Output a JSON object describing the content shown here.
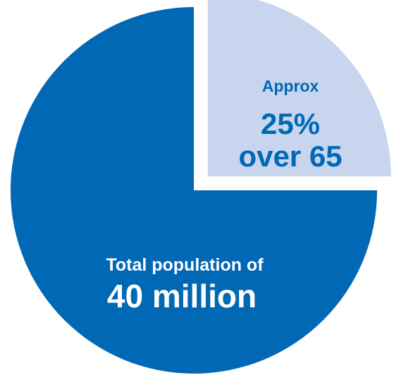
{
  "chart_data": {
    "type": "pie",
    "slices": [
      {
        "label_small": "Total population of",
        "label_large": "40 million",
        "value": 75,
        "color": "#0068b4",
        "text_color": "#ffffff",
        "exploded": false
      },
      {
        "label_small": "Approx",
        "label_large": "25%",
        "label_large_2": "over 65",
        "value": 25,
        "color": "#c8d5ee",
        "text_color": "#0068b4",
        "exploded": true
      }
    ],
    "start_angle_deg": 0,
    "direction": "clockwise"
  }
}
